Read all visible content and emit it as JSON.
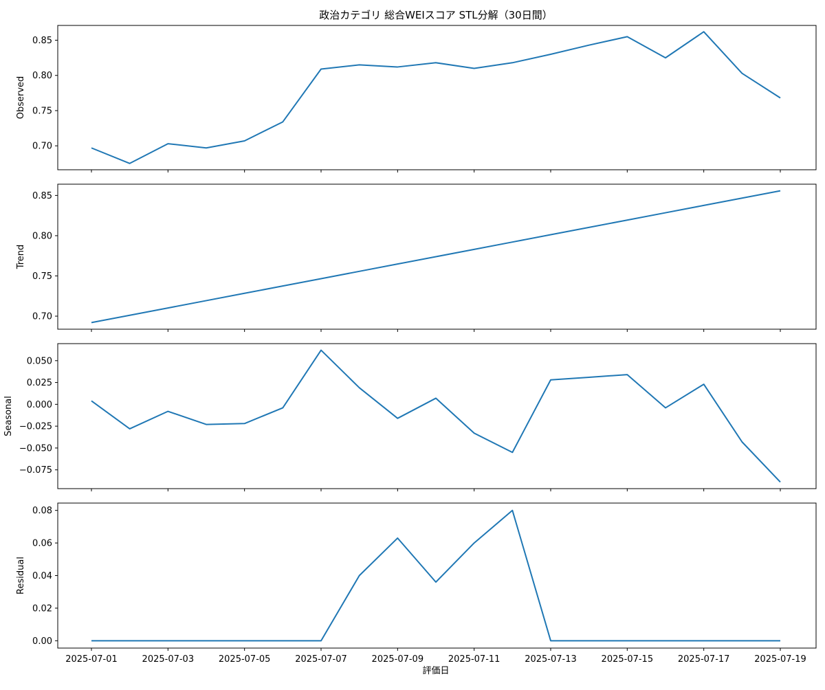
{
  "chart_data": {
    "type": "line",
    "title": "政治カテゴリ 総合WEIスコア STL分解（30日間）",
    "xlabel": "評価日",
    "x": [
      "2025-07-01",
      "2025-07-02",
      "2025-07-03",
      "2025-07-04",
      "2025-07-05",
      "2025-07-06",
      "2025-07-07",
      "2025-07-08",
      "2025-07-09",
      "2025-07-10",
      "2025-07-11",
      "2025-07-12",
      "2025-07-13",
      "2025-07-14",
      "2025-07-15",
      "2025-07-16",
      "2025-07-17",
      "2025-07-18",
      "2025-07-19"
    ],
    "x_tick_labels": [
      "2025-07-01",
      "2025-07-03",
      "2025-07-05",
      "2025-07-07",
      "2025-07-09",
      "2025-07-11",
      "2025-07-13",
      "2025-07-15",
      "2025-07-17",
      "2025-07-19"
    ],
    "line_color": "#1f77b4",
    "grid": false,
    "panels": [
      {
        "ylabel": "Observed",
        "values": [
          0.697,
          0.675,
          0.703,
          0.697,
          0.707,
          0.734,
          0.809,
          0.815,
          0.812,
          0.818,
          0.81,
          0.818,
          0.83,
          0.843,
          0.855,
          0.825,
          0.862,
          0.803,
          0.768
        ],
        "ylim": [
          0.666,
          0.871
        ],
        "yticks": [
          0.7,
          0.75,
          0.8,
          0.85
        ],
        "ytick_labels": [
          "0.70",
          "0.75",
          "0.80",
          "0.85"
        ]
      },
      {
        "ylabel": "Trend",
        "values": [
          0.692,
          0.7011,
          0.7102,
          0.7193,
          0.7284,
          0.7375,
          0.7466,
          0.7557,
          0.7648,
          0.7739,
          0.783,
          0.7921,
          0.8012,
          0.8103,
          0.8194,
          0.8285,
          0.8376,
          0.8467,
          0.8558
        ],
        "ylim": [
          0.6838,
          0.864
        ],
        "yticks": [
          0.7,
          0.75,
          0.8,
          0.85
        ],
        "ytick_labels": [
          "0.70",
          "0.75",
          "0.80",
          "0.85"
        ]
      },
      {
        "ylabel": "Seasonal",
        "values": [
          0.004,
          -0.028,
          -0.008,
          -0.023,
          -0.022,
          -0.004,
          0.062,
          0.019,
          -0.016,
          0.007,
          -0.033,
          -0.055,
          0.028,
          0.031,
          0.034,
          -0.004,
          0.023,
          -0.043,
          -0.089
        ],
        "ylim": [
          -0.0965,
          0.0695
        ],
        "yticks": [
          -0.075,
          -0.05,
          -0.025,
          0.0,
          0.025,
          0.05
        ],
        "ytick_labels": [
          "−0.075",
          "−0.050",
          "−0.025",
          "0.000",
          "0.025",
          "0.050"
        ]
      },
      {
        "ylabel": "Residual",
        "values": [
          0,
          0,
          0,
          0,
          0,
          0,
          0,
          0.04,
          0.063,
          0.036,
          0.06,
          0.08,
          0,
          0,
          0,
          0,
          0,
          0,
          0
        ],
        "ylim": [
          -0.0045,
          0.0845
        ],
        "yticks": [
          0.0,
          0.02,
          0.04,
          0.06,
          0.08
        ],
        "ytick_labels": [
          "0.00",
          "0.02",
          "0.04",
          "0.06",
          "0.08"
        ]
      }
    ]
  }
}
